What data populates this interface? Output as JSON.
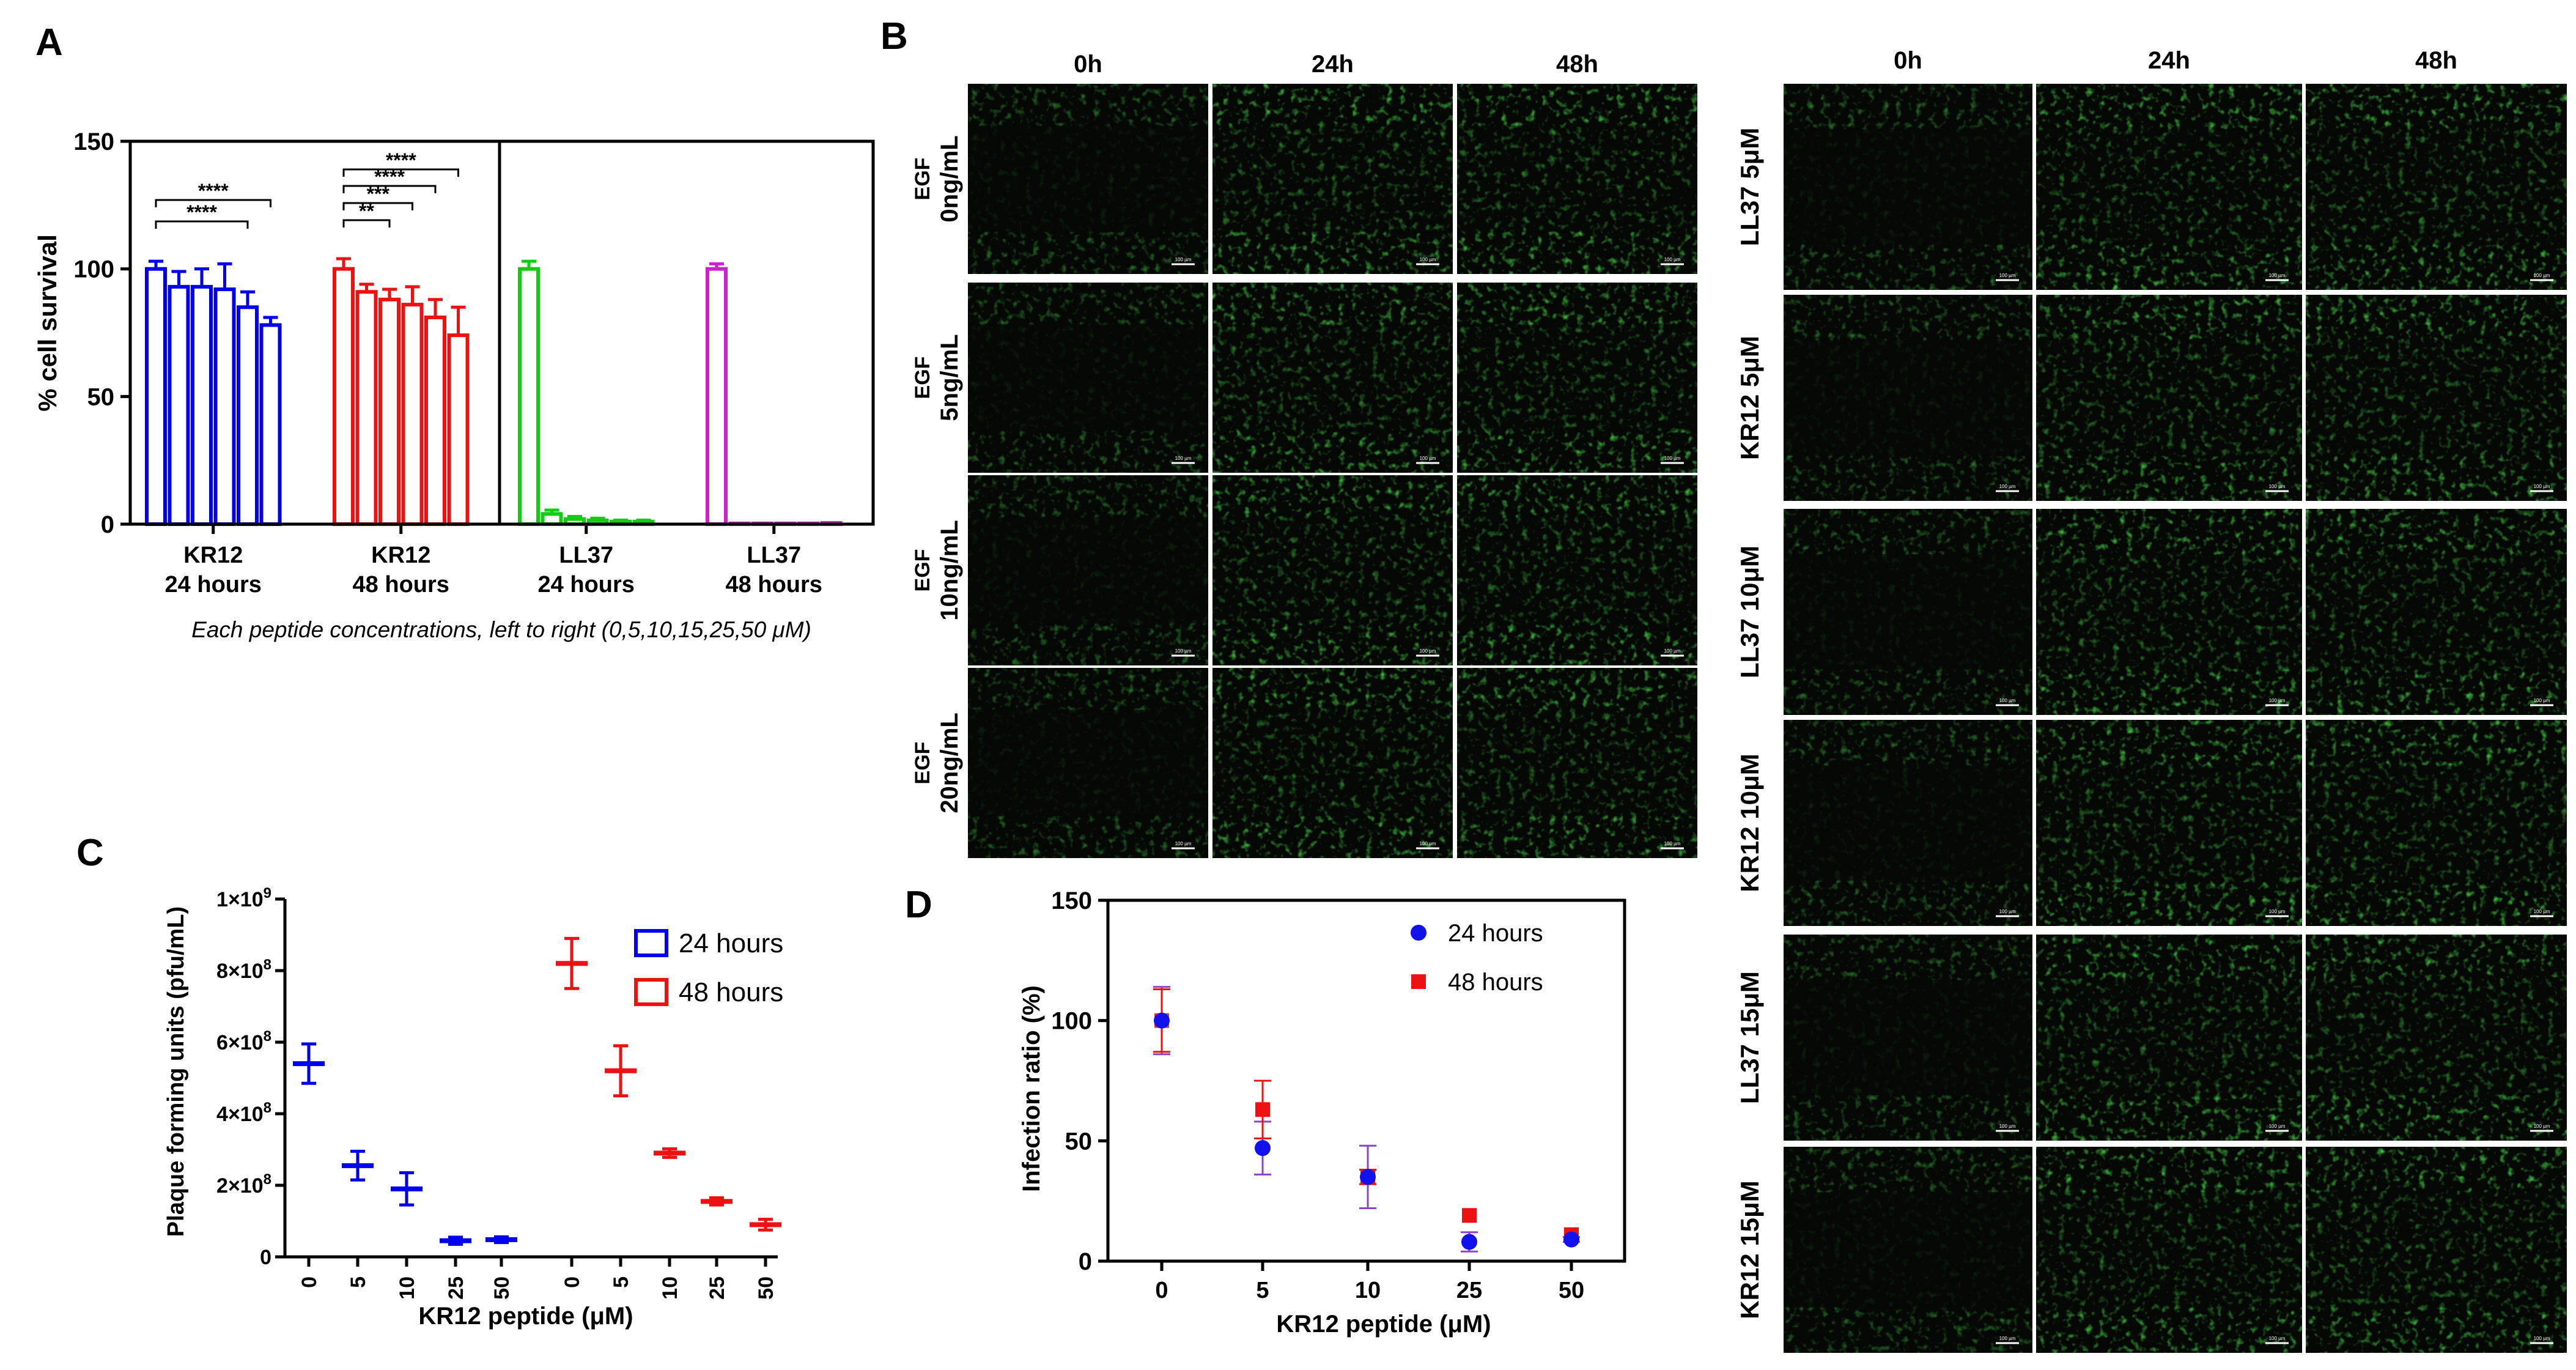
{
  "panel_labels": {
    "a": "A",
    "b": "B",
    "c": "C",
    "d": "D"
  },
  "colors": {
    "blue": "#0000ee",
    "red": "#ee1111",
    "green": "#11cc11",
    "magenta": "#cc22cc",
    "scatter_blue": "#1111ee",
    "scatter_red": "#ee1111",
    "error_purple": "#8844cc",
    "micro_bg": "#050805",
    "micro_cell": "#22aa22"
  },
  "panel_b": {
    "columns_left": [
      "0h",
      "24h",
      "48h"
    ],
    "columns_right": [
      "0h",
      "24h",
      "48h"
    ],
    "rows_left": [
      {
        "line1": "EGF",
        "line2": "0ng/mL"
      },
      {
        "line1": "EGF",
        "line2": "5ng/mL"
      },
      {
        "line1": "EGF",
        "line2": "10ng/mL"
      },
      {
        "line1": "EGF",
        "line2": "20ng/mL"
      }
    ],
    "rows_right": [
      "LL37 5μM",
      "KR12 5μM",
      "LL37 10μM",
      "KR12 10μM",
      "LL37 15μM",
      "KR12 15μM"
    ],
    "scale_bar_label": "100 µm"
  },
  "chart_data": [
    {
      "panel": "A",
      "type": "bar",
      "ylabel": "% cell survival",
      "xlabel": "Each peptide concentrations, left to right (0,5,10,15,25,50 μM)",
      "ylim": [
        0,
        150
      ],
      "yticks": [
        "0",
        "50",
        "100",
        "150"
      ],
      "concentrations": [
        0,
        5,
        10,
        15,
        25,
        50
      ],
      "groups": [
        {
          "label_line1": "KR12",
          "label_line2": "24 hours",
          "color": "blue",
          "values": [
            100,
            93,
            93,
            92,
            85,
            78
          ],
          "errors": [
            3,
            6,
            7,
            10,
            6,
            3
          ]
        },
        {
          "label_line1": "KR12",
          "label_line2": "48 hours",
          "color": "red",
          "values": [
            100,
            91,
            88,
            86,
            81,
            74
          ],
          "errors": [
            4,
            3,
            4,
            7,
            7,
            11
          ]
        },
        {
          "label_line1": "LL37",
          "label_line2": "24 hours",
          "color": "green",
          "values": [
            100,
            4,
            2,
            1.5,
            1,
            1
          ],
          "errors": [
            3,
            1.5,
            1,
            0.8,
            0.6,
            0.6
          ]
        },
        {
          "label_line1": "LL37",
          "label_line2": "48 hours",
          "color": "magenta",
          "values": [
            100,
            0.3,
            0.3,
            0.3,
            0.3,
            0.5
          ],
          "errors": [
            2,
            0,
            0,
            0,
            0,
            0
          ]
        }
      ],
      "significance": [
        {
          "group": 0,
          "from": 0,
          "to": 5,
          "label": "****"
        },
        {
          "group": 0,
          "from": 0,
          "to": 4,
          "label": "****"
        },
        {
          "group": 1,
          "from": 0,
          "to": 5,
          "label": "****"
        },
        {
          "group": 1,
          "from": 0,
          "to": 4,
          "label": "****"
        },
        {
          "group": 1,
          "from": 0,
          "to": 3,
          "label": "***"
        },
        {
          "group": 1,
          "from": 0,
          "to": 2,
          "label": "**"
        }
      ]
    },
    {
      "panel": "C",
      "type": "scatter",
      "ylabel": "Plaque forming units (pfu/mL)",
      "xlabel": "KR12 peptide (μM)",
      "ylim": [
        0,
        1000000000
      ],
      "ytick_values": [
        0,
        200000000,
        400000000,
        600000000,
        800000000,
        1000000000
      ],
      "ytick_mantissa": [
        "0",
        "2×10",
        "4×10",
        "6×10",
        "8×10",
        "1×10"
      ],
      "ytick_exponents": [
        "",
        "8",
        "8",
        "8",
        "8",
        "9"
      ],
      "categories": [
        "0",
        "5",
        "10",
        "25",
        "50",
        "0",
        "5",
        "10",
        "25",
        "50"
      ],
      "series": [
        {
          "name": "24 hours",
          "color": "blue",
          "values": [
            540000000,
            255000000,
            190000000,
            45000000,
            48000000
          ],
          "errors": [
            55000000,
            40000000,
            45000000,
            10000000,
            8000000
          ]
        },
        {
          "name": "48 hours",
          "color": "red",
          "values": [
            820000000,
            520000000,
            290000000,
            155000000,
            90000000
          ],
          "errors": [
            70000000,
            70000000,
            12000000,
            10000000,
            15000000
          ]
        }
      ]
    },
    {
      "panel": "D",
      "type": "scatter",
      "ylabel": "Infection ratio (%)",
      "xlabel": "KR12 peptide (μM)",
      "ylim": [
        0,
        150
      ],
      "yticks": [
        "0",
        "50",
        "100",
        "150"
      ],
      "categories": [
        "0",
        "5",
        "10",
        "25",
        "50"
      ],
      "series": [
        {
          "name": "24 hours",
          "color": "scatter_blue",
          "marker": "circle",
          "values": [
            100,
            47,
            35,
            8,
            9
          ],
          "errors": [
            14,
            11,
            13,
            4,
            1
          ]
        },
        {
          "name": "48 hours",
          "color": "scatter_red",
          "marker": "square",
          "values": [
            100,
            63,
            35,
            19,
            11
          ],
          "errors": [
            13,
            12,
            3,
            0,
            0
          ]
        }
      ]
    }
  ]
}
